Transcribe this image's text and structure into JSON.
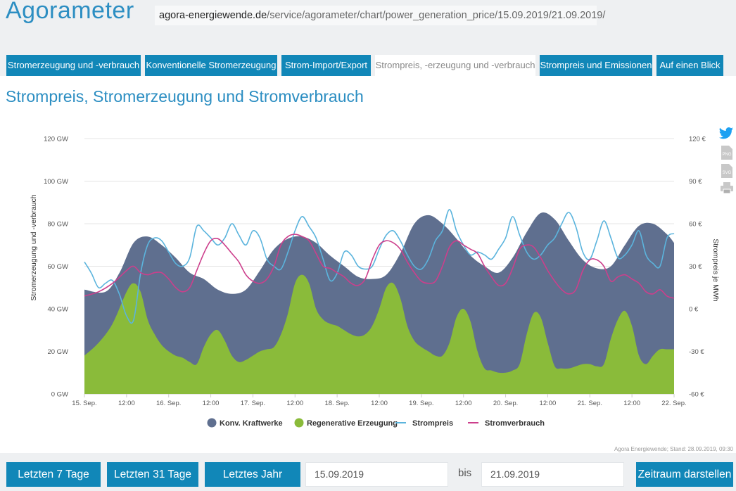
{
  "header": {
    "app_title": "Agorameter",
    "url_host": "agora-energiewende.de",
    "url_path": "/service/agorameter/chart/power_generation_price/15.09.2019/21.09.2019/"
  },
  "tabs": [
    {
      "label": "Stromerzeugung und -verbrauch",
      "active": false
    },
    {
      "label": "Konventionelle Stromerzeugung",
      "active": false
    },
    {
      "label": "Strom-Import/Export",
      "active": false
    },
    {
      "label": "Strompreis, -erzeugung und -verbrauch",
      "active": true
    },
    {
      "label": "Strompreis und Emissionen",
      "active": false
    },
    {
      "label": "Auf einen Blick",
      "active": false
    }
  ],
  "section_title": "Strompreis, Stromerzeugung und Stromverbrauch",
  "share_icons": [
    "twitter-icon",
    "png-download-icon",
    "svg-download-icon",
    "print-icon"
  ],
  "share_labels": {
    "png": "PNG",
    "svg": "SVG"
  },
  "colors": {
    "accent": "#1187b8",
    "konv": "#5f6f8f",
    "regen": "#8abb3a",
    "preis": "#5bb4dd",
    "verbrauch": "#cc3f8c"
  },
  "chart_data": {
    "type": "area",
    "x_unit": "hours since 15. Sep. 00:00",
    "x_tick_labels": [
      "15. Sep.",
      "12:00",
      "16. Sep.",
      "12:00",
      "17. Sep.",
      "12:00",
      "18. Sep.",
      "12:00",
      "19. Sep.",
      "12:00",
      "20. Sep.",
      "12:00",
      "21. Sep.",
      "12:00",
      "22. Sep."
    ],
    "ylabel_left": "Stromerzeugung und -verbrauch",
    "ylabel_right": "Strompreis je MWh",
    "ylim_left": [
      0,
      120
    ],
    "ylim_right": [
      -60,
      120
    ],
    "y_ticks_left": [
      "0 GW",
      "20 GW",
      "40 GW",
      "60 GW",
      "80 GW",
      "100 GW",
      "120 GW"
    ],
    "y_ticks_right": [
      "-60 €",
      "-30 €",
      "0 €",
      "30 €",
      "60 €",
      "90 €",
      "120 €"
    ],
    "grid": true,
    "legend_position": "bottom",
    "series": [
      {
        "name": "Konv. Kraftwerke",
        "kind": "area",
        "axis": "left",
        "x": [
          0,
          6,
          10,
          14,
          18,
          22,
          26,
          30,
          34,
          38,
          42,
          46,
          50,
          54,
          58,
          62,
          66,
          70,
          74,
          78,
          82,
          86,
          90,
          94,
          98,
          102,
          106,
          110,
          114,
          118,
          122,
          126,
          130,
          134,
          138,
          142,
          146,
          150,
          154,
          158,
          162,
          166,
          168
        ],
        "values": [
          49,
          48,
          57,
          71,
          74,
          70,
          64,
          57,
          54,
          49,
          47,
          49,
          58,
          68,
          73,
          74,
          71,
          65,
          60,
          55,
          54,
          56,
          66,
          80,
          84,
          80,
          73,
          65,
          60,
          57,
          64,
          76,
          85,
          82,
          72,
          63,
          59,
          60,
          70,
          79,
          80,
          75,
          71
        ]
      },
      {
        "name": "Regenerative Erzeugung",
        "kind": "area",
        "axis": "left",
        "x": [
          0,
          4,
          8,
          12,
          14,
          16,
          18,
          20,
          22,
          24,
          26,
          28,
          30,
          32,
          34,
          36,
          38,
          40,
          42,
          44,
          46,
          48,
          50,
          52,
          54,
          56,
          58,
          60,
          62,
          64,
          66,
          68,
          70,
          72,
          74,
          76,
          78,
          80,
          82,
          84,
          86,
          88,
          90,
          92,
          94,
          96,
          98,
          100,
          102,
          104,
          106,
          108,
          110,
          112,
          114,
          116,
          118,
          120,
          122,
          124,
          126,
          128,
          130,
          132,
          134,
          136,
          138,
          140,
          142,
          144,
          146,
          148,
          150,
          152,
          154,
          156,
          158,
          160,
          162,
          164,
          166,
          168
        ],
        "values": [
          18,
          24,
          33,
          48,
          52,
          48,
          35,
          28,
          23,
          20,
          18,
          17,
          15,
          14,
          22,
          28,
          30,
          25,
          18,
          15,
          16,
          18,
          20,
          21,
          22,
          28,
          38,
          52,
          56,
          52,
          40,
          35,
          33,
          32,
          30,
          28,
          27,
          28,
          32,
          40,
          50,
          52,
          45,
          32,
          25,
          22,
          20,
          18,
          18,
          24,
          36,
          40,
          34,
          20,
          12,
          11,
          10,
          10,
          11,
          14,
          28,
          38,
          36,
          24,
          13,
          12,
          12,
          13,
          14,
          14,
          13,
          14,
          26,
          35,
          39,
          32,
          18,
          14,
          18,
          21,
          21,
          21
        ]
      },
      {
        "name": "Strompreis",
        "kind": "line",
        "axis": "right",
        "x": [
          0,
          2,
          4,
          6,
          8,
          10,
          12,
          14,
          16,
          18,
          20,
          22,
          24,
          26,
          28,
          30,
          32,
          34,
          36,
          38,
          40,
          42,
          44,
          46,
          48,
          50,
          52,
          54,
          56,
          58,
          60,
          62,
          64,
          66,
          68,
          70,
          72,
          74,
          76,
          78,
          80,
          82,
          84,
          86,
          88,
          90,
          92,
          94,
          96,
          98,
          100,
          102,
          104,
          106,
          108,
          110,
          112,
          114,
          116,
          118,
          120,
          122,
          124,
          126,
          128,
          130,
          132,
          134,
          136,
          138,
          140,
          142,
          144,
          146,
          148,
          150,
          152,
          154,
          156,
          158,
          160,
          162,
          164,
          166,
          168
        ],
        "values": [
          33,
          25,
          15,
          18,
          20,
          10,
          -5,
          -8,
          25,
          45,
          50,
          48,
          40,
          32,
          30,
          36,
          58,
          55,
          50,
          45,
          50,
          60,
          52,
          45,
          55,
          50,
          35,
          30,
          28,
          40,
          55,
          65,
          58,
          50,
          35,
          20,
          25,
          40,
          38,
          30,
          28,
          30,
          42,
          52,
          55,
          48,
          38,
          30,
          28,
          35,
          48,
          55,
          70,
          55,
          45,
          38,
          40,
          38,
          35,
          42,
          50,
          65,
          52,
          40,
          35,
          38,
          45,
          50,
          60,
          68,
          58,
          40,
          35,
          48,
          62,
          50,
          36,
          38,
          45,
          55,
          38,
          32,
          30,
          50,
          53
        ]
      },
      {
        "name": "Stromverbrauch",
        "kind": "line",
        "axis": "left",
        "x": [
          0,
          4,
          8,
          12,
          14,
          16,
          18,
          20,
          22,
          24,
          26,
          28,
          30,
          32,
          34,
          36,
          38,
          40,
          42,
          44,
          46,
          48,
          50,
          52,
          54,
          56,
          58,
          60,
          62,
          64,
          66,
          68,
          70,
          72,
          74,
          76,
          78,
          80,
          82,
          84,
          86,
          88,
          90,
          92,
          94,
          96,
          98,
          100,
          102,
          104,
          106,
          108,
          110,
          112,
          114,
          116,
          118,
          120,
          122,
          124,
          126,
          128,
          130,
          132,
          134,
          136,
          138,
          140,
          142,
          144,
          146,
          148,
          150,
          152,
          154,
          156,
          158,
          160,
          162,
          164,
          166,
          168
        ],
        "values": [
          46,
          48,
          52,
          58,
          60,
          57,
          56,
          57,
          57,
          54,
          50,
          48,
          50,
          58,
          66,
          72,
          73,
          70,
          66,
          62,
          56,
          53,
          52,
          54,
          60,
          70,
          74,
          75,
          74,
          72,
          66,
          60,
          59,
          57,
          55,
          52,
          51,
          54,
          63,
          70,
          72,
          71,
          68,
          62,
          57,
          53,
          52,
          53,
          60,
          69,
          72,
          70,
          68,
          66,
          60,
          55,
          51,
          52,
          59,
          68,
          70,
          69,
          64,
          58,
          53,
          49,
          47,
          49,
          58,
          63,
          63,
          60,
          53,
          55,
          56,
          54,
          52,
          48,
          47,
          49,
          46,
          45
        ]
      }
    ]
  },
  "credit": "Agora Energiewende; Stand: 28.09.2019, 09:30",
  "controls": {
    "btn_7": "Letzten 7 Tage",
    "btn_31": "Letzten 31 Tage",
    "btn_year": "Letztes Jahr",
    "from_date": "15.09.2019",
    "bis": "bis",
    "to_date": "21.09.2019",
    "show": "Zeitraum darstellen"
  }
}
